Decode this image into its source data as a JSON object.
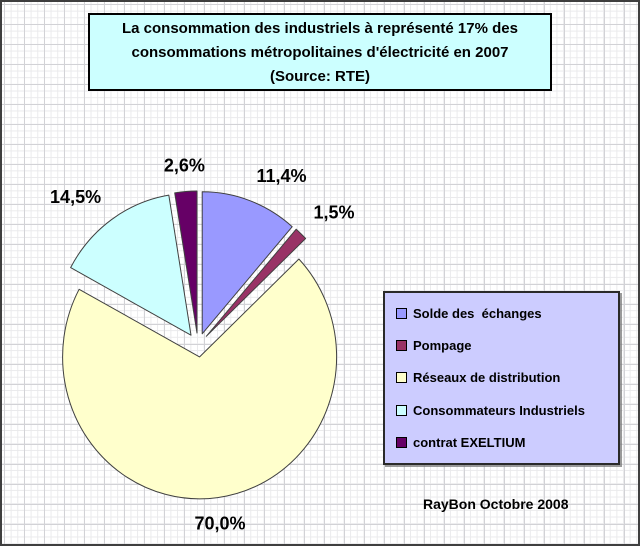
{
  "title": {
    "line1": "La consommation des industriels à représenté 17% des",
    "line2": "consommations métropolitaines d'électricité en 2007",
    "line3": "(Source: RTE)"
  },
  "credit": "RayBon Octobre 2008",
  "colors": {
    "title_box_bg": "#CCFFFF",
    "legend_bg": "#CCCCFF",
    "box_border": "#000000",
    "slice_stroke": "#404040",
    "grid_major": "#d2d2d6",
    "grid_minor": "#eaeaec",
    "text": "#000000"
  },
  "chart_data": {
    "type": "pie",
    "title": "La consommation des industriels à représenté 17% des consommations métropolitaines d'électricité en 2007 (Source: RTE)",
    "categories": [
      "Solde des  échanges",
      "Pompage",
      "Réseaux de distribution",
      "Consommateurs Industriels",
      "contrat EXELTIUM"
    ],
    "values": [
      11.4,
      1.5,
      70.0,
      14.5,
      2.6
    ],
    "labels": [
      "11,4%",
      "1,5%",
      "70,0%",
      "14,5%",
      "2,6%"
    ],
    "colors": [
      "#9999FF",
      "#993366",
      "#FFFFCC",
      "#CCFFFF",
      "#660066"
    ],
    "start_angle_deg": 0,
    "direction": "clockwise",
    "exploded": true,
    "legend_position": "right",
    "grid": "graph-paper-background"
  }
}
